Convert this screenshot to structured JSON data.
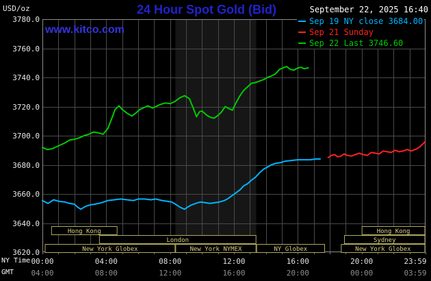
{
  "header": {
    "units": "USD/oz",
    "title": "24 Hour Spot Gold (Bid)",
    "datetime": "September 22, 2025 16:40",
    "site": "www.kitco.com"
  },
  "legend": [
    {
      "id": "sep19",
      "label": "Sep 19 NY close 3684.00",
      "color": "#00b4ff"
    },
    {
      "id": "sep21",
      "label": "Sep 21 Sunday",
      "color": "#ff2222"
    },
    {
      "id": "sep22",
      "label": "Sep 22 Last 3746.60",
      "color": "#00cc00"
    }
  ],
  "axes": {
    "ny_caption": "NY Time",
    "gmt_caption": "GMT",
    "y_ticks": [
      "3780.0",
      "3760.0",
      "3740.0",
      "3720.0",
      "3700.0",
      "3680.0",
      "3660.0",
      "3640.0",
      "3620.0"
    ],
    "x_hour_positions": [
      0,
      4,
      8,
      12,
      16,
      20,
      23.983
    ],
    "x_ny": [
      "00:00",
      "04:00",
      "08:00",
      "12:00",
      "16:00",
      "20:00",
      "23:59"
    ],
    "x_gmt": [
      "04:00",
      "08:00",
      "12:00",
      "16:00",
      "20:00",
      "00:00",
      "03:59"
    ]
  },
  "sessions": [
    {
      "row": 0,
      "label": "Hong Kong",
      "start": 0.55,
      "end": 4.7
    },
    {
      "row": 0,
      "label": "Hong Kong",
      "start": 20.0,
      "end": 23.98
    },
    {
      "row": 1,
      "label": "London",
      "start": 3.55,
      "end": 13.4
    },
    {
      "row": 1,
      "label": "Sydney",
      "start": 18.9,
      "end": 23.98
    },
    {
      "row": 2,
      "label": "New York Globex",
      "start": 0.15,
      "end": 8.33
    },
    {
      "row": 2,
      "label": "New York NYMEX",
      "start": 8.33,
      "end": 13.4
    },
    {
      "row": 2,
      "label": "NY Globex",
      "start": 13.4,
      "end": 17.7
    },
    {
      "row": 2,
      "label": "New York Globex",
      "start": 18.7,
      "end": 23.98
    }
  ],
  "colors": {
    "background": "#000000",
    "title_blue": "#2222cc",
    "kitco_blue": "#3333dd",
    "grid": "#4a4a4a",
    "frame": "#8c8c8c",
    "tick": "#777777",
    "shade": "#161616",
    "khaki_border": "#b0a95e",
    "khaki_text": "#d6cd82"
  },
  "chart_data": {
    "type": "line",
    "title": "24 Hour Spot Gold (Bid)",
    "xlabel": "NY Time",
    "ylabel": "USD/oz",
    "x_range_hours": [
      0,
      24
    ],
    "ylim": [
      3620,
      3780
    ],
    "y_tick_step": 20,
    "grid": true,
    "legend_position": "top-right",
    "shaded_region_hours": [
      8.33,
      13.4
    ],
    "series": [
      {
        "id": "sep19",
        "name": "Sep 19 NY close 3684.00",
        "color": "#00b4ff",
        "points": [
          [
            0,
            3655.5
          ],
          [
            0.35,
            3653.5
          ],
          [
            0.7,
            3656
          ],
          [
            1,
            3655
          ],
          [
            1.4,
            3654.5
          ],
          [
            1.7,
            3653.5
          ],
          [
            2,
            3653
          ],
          [
            2.2,
            3651
          ],
          [
            2.4,
            3649.5
          ],
          [
            2.7,
            3651.5
          ],
          [
            3,
            3652.5
          ],
          [
            3.3,
            3653
          ],
          [
            3.7,
            3654
          ],
          [
            4.1,
            3655.5
          ],
          [
            4.5,
            3656
          ],
          [
            4.9,
            3656.5
          ],
          [
            5.3,
            3656
          ],
          [
            5.7,
            3655.5
          ],
          [
            6,
            3656.5
          ],
          [
            6.4,
            3656.5
          ],
          [
            6.8,
            3656
          ],
          [
            7.1,
            3656.5
          ],
          [
            7.5,
            3655.5
          ],
          [
            7.8,
            3655
          ],
          [
            8.1,
            3654.5
          ],
          [
            8.4,
            3652.5
          ],
          [
            8.6,
            3651
          ],
          [
            8.9,
            3649.5
          ],
          [
            9.1,
            3651
          ],
          [
            9.35,
            3652.5
          ],
          [
            9.6,
            3653.5
          ],
          [
            9.9,
            3654.5
          ],
          [
            10.2,
            3654
          ],
          [
            10.5,
            3653.5
          ],
          [
            10.8,
            3654
          ],
          [
            11.1,
            3654.5
          ],
          [
            11.4,
            3655.5
          ],
          [
            11.65,
            3657
          ],
          [
            11.9,
            3659
          ],
          [
            12.15,
            3661
          ],
          [
            12.4,
            3663
          ],
          [
            12.6,
            3665.5
          ],
          [
            12.85,
            3667
          ],
          [
            13.1,
            3669.5
          ],
          [
            13.35,
            3671.5
          ],
          [
            13.6,
            3674.5
          ],
          [
            13.85,
            3677
          ],
          [
            14.1,
            3678.5
          ],
          [
            14.35,
            3680
          ],
          [
            14.6,
            3681
          ],
          [
            14.9,
            3681.5
          ],
          [
            15.2,
            3682.5
          ],
          [
            15.6,
            3683
          ],
          [
            16,
            3683.5
          ],
          [
            16.4,
            3683.5
          ],
          [
            16.8,
            3683.5
          ],
          [
            17.1,
            3684
          ],
          [
            17.4,
            3684
          ]
        ]
      },
      {
        "id": "sep21",
        "name": "Sep 21 Sunday",
        "color": "#ff2222",
        "points": [
          [
            17.9,
            3685
          ],
          [
            18.1,
            3686.5
          ],
          [
            18.3,
            3687
          ],
          [
            18.5,
            3685.5
          ],
          [
            18.7,
            3686
          ],
          [
            18.9,
            3687.5
          ],
          [
            19.1,
            3686.5
          ],
          [
            19.35,
            3686
          ],
          [
            19.6,
            3687
          ],
          [
            19.85,
            3688
          ],
          [
            20.1,
            3687
          ],
          [
            20.35,
            3686.5
          ],
          [
            20.6,
            3688.5
          ],
          [
            20.85,
            3688
          ],
          [
            21.1,
            3687.5
          ],
          [
            21.35,
            3689.5
          ],
          [
            21.6,
            3689
          ],
          [
            21.85,
            3688.5
          ],
          [
            22.1,
            3690
          ],
          [
            22.35,
            3689
          ],
          [
            22.6,
            3689.5
          ],
          [
            22.85,
            3690.5
          ],
          [
            23.1,
            3689.5
          ],
          [
            23.35,
            3690.5
          ],
          [
            23.6,
            3692
          ],
          [
            23.8,
            3694
          ],
          [
            23.98,
            3696
          ]
        ]
      },
      {
        "id": "sep22",
        "name": "Sep 22 Last 3746.60",
        "color": "#00cc00",
        "points": [
          [
            0,
            3692
          ],
          [
            0.3,
            3690.5
          ],
          [
            0.6,
            3691
          ],
          [
            1,
            3693
          ],
          [
            1.4,
            3695
          ],
          [
            1.7,
            3697
          ],
          [
            2,
            3697.5
          ],
          [
            2.3,
            3698.5
          ],
          [
            2.6,
            3700
          ],
          [
            2.9,
            3701
          ],
          [
            3.2,
            3702.5
          ],
          [
            3.5,
            3702
          ],
          [
            3.8,
            3701
          ],
          [
            4.1,
            3705
          ],
          [
            4.35,
            3712
          ],
          [
            4.55,
            3718
          ],
          [
            4.8,
            3720.5
          ],
          [
            5,
            3718
          ],
          [
            5.3,
            3715.5
          ],
          [
            5.6,
            3713.5
          ],
          [
            5.9,
            3716
          ],
          [
            6.1,
            3718
          ],
          [
            6.4,
            3719.5
          ],
          [
            6.6,
            3720.5
          ],
          [
            6.9,
            3719
          ],
          [
            7.1,
            3720
          ],
          [
            7.4,
            3721.5
          ],
          [
            7.7,
            3722.5
          ],
          [
            8,
            3722
          ],
          [
            8.3,
            3723.5
          ],
          [
            8.6,
            3726
          ],
          [
            8.9,
            3727.5
          ],
          [
            9.2,
            3725.5
          ],
          [
            9.45,
            3719
          ],
          [
            9.65,
            3713
          ],
          [
            9.85,
            3716.5
          ],
          [
            10,
            3717
          ],
          [
            10.3,
            3714
          ],
          [
            10.55,
            3712.5
          ],
          [
            10.75,
            3712
          ],
          [
            11,
            3714
          ],
          [
            11.2,
            3716
          ],
          [
            11.45,
            3720
          ],
          [
            11.7,
            3718.5
          ],
          [
            11.9,
            3717.5
          ],
          [
            12.1,
            3722
          ],
          [
            12.35,
            3727
          ],
          [
            12.6,
            3731
          ],
          [
            12.85,
            3733.5
          ],
          [
            13.1,
            3736
          ],
          [
            13.35,
            3736.5
          ],
          [
            13.6,
            3737.5
          ],
          [
            13.85,
            3738.5
          ],
          [
            14.1,
            3740
          ],
          [
            14.35,
            3741
          ],
          [
            14.6,
            3742.5
          ],
          [
            14.85,
            3745.5
          ],
          [
            15.05,
            3746.5
          ],
          [
            15.3,
            3747.5
          ],
          [
            15.55,
            3745.5
          ],
          [
            15.75,
            3745
          ],
          [
            16,
            3746.5
          ],
          [
            16.2,
            3747
          ],
          [
            16.4,
            3746
          ],
          [
            16.65,
            3746.6
          ]
        ]
      }
    ]
  }
}
